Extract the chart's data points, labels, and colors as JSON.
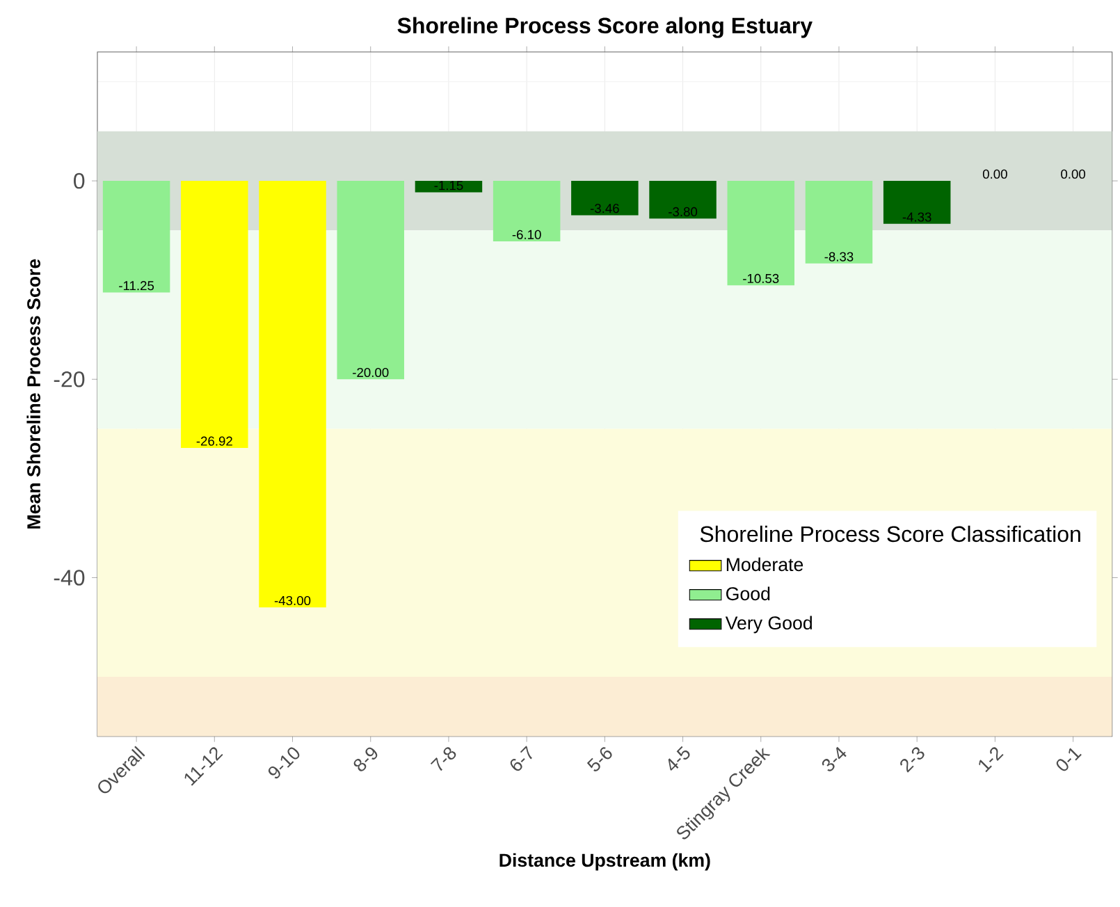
{
  "chart_data": {
    "type": "bar",
    "title": "Shoreline Process Score along Estuary",
    "xlabel": "Distance Upstream (km)",
    "ylabel": "Mean Shoreline Process Score",
    "legend_title": "Shoreline Process Score Classification",
    "categories": [
      "Overall",
      "11-12",
      "9-10",
      "8-9",
      "7-8",
      "6-7",
      "5-6",
      "4-5",
      "Stingray Creek",
      "3-4",
      "2-3",
      "1-2",
      "0-1"
    ],
    "series": [
      {
        "name": "Moderate",
        "color": "#ffff00",
        "values": [
          null,
          -26.92,
          -43.0,
          null,
          null,
          null,
          null,
          null,
          null,
          null,
          null,
          null,
          null
        ],
        "value_labels": [
          null,
          "-26.92",
          "-43.00",
          null,
          null,
          null,
          null,
          null,
          null,
          null,
          null,
          null,
          null
        ]
      },
      {
        "name": "Good",
        "color": "#90ee90",
        "values": [
          -11.25,
          null,
          null,
          -20.0,
          null,
          -6.1,
          null,
          null,
          -10.53,
          -8.33,
          null,
          null,
          null
        ],
        "value_labels": [
          "-11.25",
          null,
          null,
          "-20.00",
          null,
          "-6.10",
          null,
          null,
          "-10.53",
          "-8.33",
          null,
          null,
          null
        ]
      },
      {
        "name": "Very Good",
        "color": "#006400",
        "values": [
          null,
          null,
          null,
          null,
          -1.15,
          null,
          -3.46,
          -3.8,
          null,
          null,
          -4.33,
          0.0,
          0.0
        ],
        "value_labels": [
          null,
          null,
          null,
          null,
          "-1.15",
          null,
          "-3.46",
          "-3.80",
          null,
          null,
          "-4.33",
          "0.00",
          "0.00"
        ]
      }
    ],
    "bands": [
      {
        "axis": "y",
        "from": -5,
        "to": 5,
        "color": "#d6dfd6"
      },
      {
        "axis": "y",
        "from": -25,
        "to": -5,
        "color": "#f0fbf0"
      },
      {
        "axis": "y",
        "from": -50,
        "to": -25,
        "color": "#fdfcdc"
      },
      {
        "axis": "y",
        "from": -56,
        "to": -50,
        "color": "#fcedd4"
      }
    ],
    "ylim": [
      -56,
      13
    ],
    "yticks": [
      -40,
      -20,
      0
    ],
    "grid": true,
    "legend": "bottom right"
  }
}
